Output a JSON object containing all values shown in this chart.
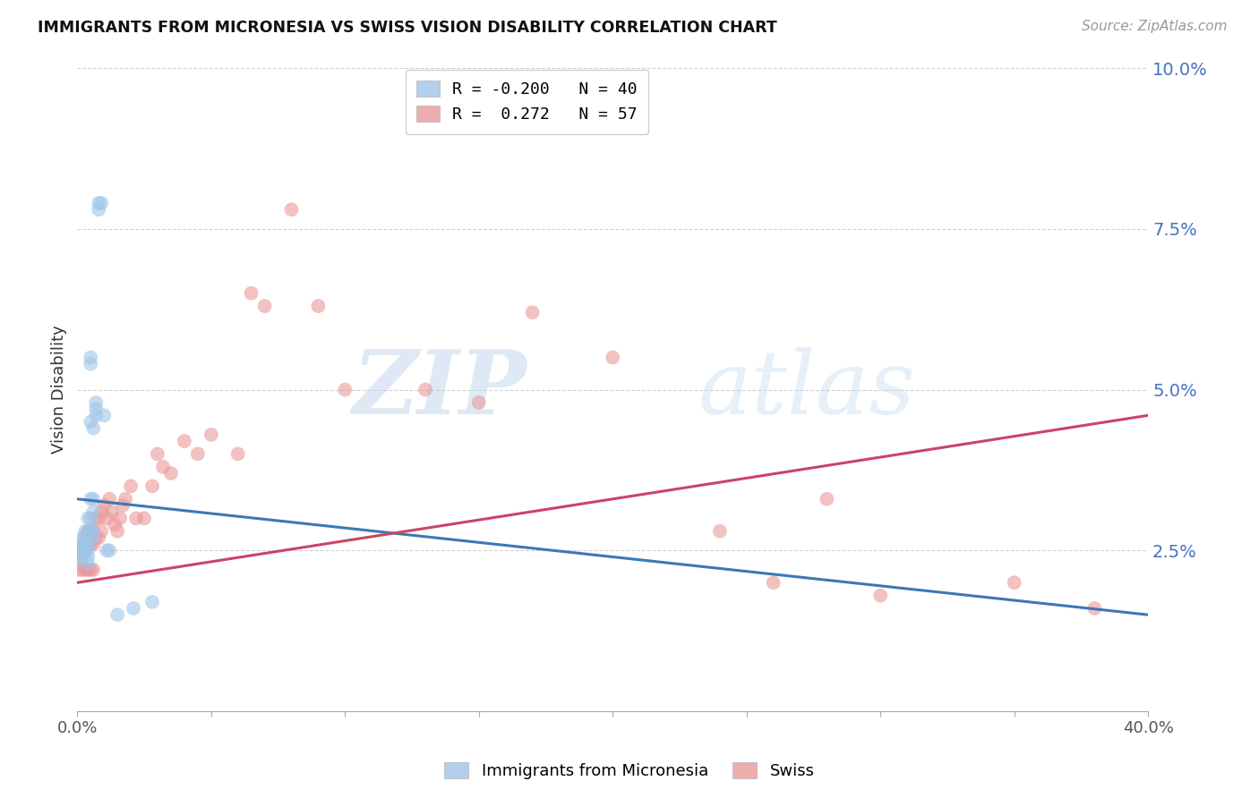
{
  "title": "IMMIGRANTS FROM MICRONESIA VS SWISS VISION DISABILITY CORRELATION CHART",
  "source": "Source: ZipAtlas.com",
  "ylabel": "Vision Disability",
  "x_min": 0.0,
  "x_max": 0.4,
  "y_min": 0.0,
  "y_max": 0.1,
  "x_ticks": [
    0.0,
    0.05,
    0.1,
    0.15,
    0.2,
    0.25,
    0.3,
    0.35,
    0.4
  ],
  "x_tick_labels": [
    "0.0%",
    "",
    "",
    "",
    "",
    "",
    "",
    "",
    "40.0%"
  ],
  "y_ticks": [
    0.0,
    0.025,
    0.05,
    0.075,
    0.1
  ],
  "y_tick_labels": [
    "",
    "2.5%",
    "5.0%",
    "7.5%",
    "10.0%"
  ],
  "blue_R": -0.2,
  "blue_N": 40,
  "pink_R": 0.272,
  "pink_N": 57,
  "blue_color": "#9fc5e8",
  "pink_color": "#ea9999",
  "blue_line_color": "#3d78b5",
  "pink_line_color": "#cc4466",
  "legend_label_blue": "Immigrants from Micronesia",
  "legend_label_pink": "Swiss",
  "watermark_zip": "ZIP",
  "watermark_atlas": "atlas",
  "blue_line_x0": 0.0,
  "blue_line_x1": 0.4,
  "blue_line_y0": 0.033,
  "blue_line_y1": 0.015,
  "pink_line_x0": 0.0,
  "pink_line_x1": 0.4,
  "pink_line_y0": 0.02,
  "pink_line_y1": 0.046,
  "blue_scatter_x": [
    0.001,
    0.001,
    0.001,
    0.002,
    0.002,
    0.002,
    0.002,
    0.003,
    0.003,
    0.003,
    0.003,
    0.004,
    0.004,
    0.004,
    0.004,
    0.004,
    0.004,
    0.005,
    0.005,
    0.005,
    0.005,
    0.005,
    0.005,
    0.006,
    0.006,
    0.006,
    0.006,
    0.006,
    0.007,
    0.007,
    0.007,
    0.008,
    0.008,
    0.009,
    0.01,
    0.011,
    0.012,
    0.015,
    0.021,
    0.028
  ],
  "blue_scatter_y": [
    0.026,
    0.025,
    0.024,
    0.027,
    0.026,
    0.025,
    0.024,
    0.028,
    0.027,
    0.026,
    0.025,
    0.03,
    0.028,
    0.026,
    0.025,
    0.024,
    0.023,
    0.055,
    0.054,
    0.045,
    0.033,
    0.03,
    0.028,
    0.044,
    0.033,
    0.031,
    0.028,
    0.027,
    0.048,
    0.047,
    0.046,
    0.079,
    0.078,
    0.079,
    0.046,
    0.025,
    0.025,
    0.015,
    0.016,
    0.017
  ],
  "pink_scatter_x": [
    0.001,
    0.001,
    0.002,
    0.002,
    0.003,
    0.003,
    0.003,
    0.004,
    0.004,
    0.004,
    0.005,
    0.005,
    0.005,
    0.006,
    0.006,
    0.006,
    0.007,
    0.007,
    0.008,
    0.008,
    0.009,
    0.009,
    0.01,
    0.011,
    0.012,
    0.013,
    0.014,
    0.015,
    0.016,
    0.017,
    0.018,
    0.02,
    0.022,
    0.025,
    0.028,
    0.03,
    0.032,
    0.035,
    0.04,
    0.045,
    0.05,
    0.06,
    0.065,
    0.07,
    0.08,
    0.09,
    0.1,
    0.13,
    0.15,
    0.17,
    0.2,
    0.24,
    0.26,
    0.28,
    0.3,
    0.35,
    0.38
  ],
  "pink_scatter_y": [
    0.024,
    0.022,
    0.026,
    0.022,
    0.027,
    0.026,
    0.022,
    0.028,
    0.026,
    0.022,
    0.028,
    0.026,
    0.022,
    0.028,
    0.026,
    0.022,
    0.03,
    0.027,
    0.03,
    0.027,
    0.031,
    0.028,
    0.032,
    0.03,
    0.033,
    0.031,
    0.029,
    0.028,
    0.03,
    0.032,
    0.033,
    0.035,
    0.03,
    0.03,
    0.035,
    0.04,
    0.038,
    0.037,
    0.042,
    0.04,
    0.043,
    0.04,
    0.065,
    0.063,
    0.078,
    0.063,
    0.05,
    0.05,
    0.048,
    0.062,
    0.055,
    0.028,
    0.02,
    0.033,
    0.018,
    0.02,
    0.016
  ]
}
